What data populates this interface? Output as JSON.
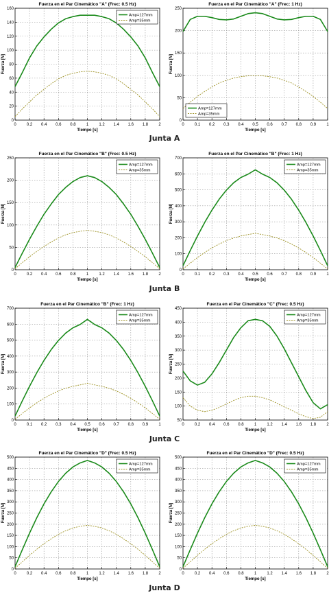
{
  "captions": [
    "Junta A",
    "Junta B",
    "Junta C",
    "Junta D"
  ],
  "colors": {
    "series_127": "#1a8a1a",
    "series_35": "#9b8f1f",
    "grid": "#9a9a9a"
  },
  "chart_data": [
    {
      "type": "line",
      "title": "Fuerza en el Par Cinemático \"A\" (Frec: 0.5 Hz)",
      "xlabel": "Tiempo [s]",
      "ylabel": "Fuerza [N]",
      "xlim": [
        0,
        2
      ],
      "ylim": [
        0,
        160
      ],
      "xticks": [
        "0",
        "0.2",
        "0.4",
        "0.6",
        "0.8",
        "1",
        "1.2",
        "1.4",
        "1.6",
        "1.8",
        "2"
      ],
      "yticks": [
        "0",
        "20",
        "40",
        "60",
        "80",
        "100",
        "120",
        "140",
        "160"
      ],
      "grid": true,
      "legend": "top-right",
      "x": [
        0,
        0.1,
        0.2,
        0.3,
        0.4,
        0.5,
        0.6,
        0.7,
        0.8,
        0.9,
        1.0,
        1.1,
        1.2,
        1.3,
        1.4,
        1.5,
        1.6,
        1.7,
        1.8,
        1.9,
        2.0
      ],
      "series": [
        {
          "name": "Amp=127mm",
          "values": [
            48,
            68,
            89,
            106,
            119,
            130,
            139,
            145,
            148,
            150,
            150,
            150,
            148,
            145,
            139,
            130,
            119,
            106,
            89,
            68,
            48
          ]
        },
        {
          "name": "Amp=35mm",
          "values": [
            5,
            16,
            26,
            36,
            44,
            52,
            59,
            64,
            67,
            69,
            70,
            69,
            67,
            64,
            59,
            52,
            44,
            36,
            26,
            16,
            5
          ]
        }
      ]
    },
    {
      "type": "line",
      "title": "Fuerza en el Par Cinemático \"A\" (Frec: 1 Hz)",
      "xlabel": "Tiempo [s]",
      "ylabel": "Fuerza [N]",
      "xlim": [
        0,
        1
      ],
      "ylim": [
        0,
        250
      ],
      "xticks": [
        "0",
        "0.1",
        "0.2",
        "0.3",
        "0.4",
        "0.5",
        "0.6",
        "0.7",
        "0.8",
        "0.9",
        "1"
      ],
      "yticks": [
        "0",
        "50",
        "100",
        "150",
        "200",
        "250"
      ],
      "grid": true,
      "legend": "bottom-left",
      "x": [
        0,
        0.05,
        0.1,
        0.15,
        0.2,
        0.25,
        0.3,
        0.35,
        0.4,
        0.45,
        0.5,
        0.55,
        0.6,
        0.65,
        0.7,
        0.75,
        0.8,
        0.85,
        0.9,
        0.95,
        1.0
      ],
      "series": [
        {
          "name": "Amp=127mm",
          "values": [
            198,
            225,
            232,
            232,
            229,
            225,
            224,
            226,
            232,
            238,
            240,
            238,
            232,
            226,
            224,
            225,
            229,
            232,
            232,
            225,
            198
          ]
        },
        {
          "name": "Amp=35mm",
          "values": [
            26,
            40,
            53,
            64,
            74,
            83,
            89,
            94,
            97,
            99,
            99,
            99,
            97,
            94,
            89,
            83,
            74,
            64,
            53,
            40,
            26
          ]
        }
      ]
    },
    {
      "type": "line",
      "title": "Fuerza en el Par Cinemático \"B\" (Frec: 0.5 Hz)",
      "xlabel": "Tiempo [s]",
      "ylabel": "Fuerza [N]",
      "xlim": [
        0,
        2
      ],
      "ylim": [
        0,
        250
      ],
      "xticks": [
        "0",
        "0.2",
        "0.4",
        "0.6",
        "0.8",
        "1",
        "1.2",
        "1.4",
        "1.6",
        "1.8",
        "2"
      ],
      "yticks": [
        "0",
        "50",
        "100",
        "150",
        "200",
        "250"
      ],
      "grid": true,
      "legend": "top-right",
      "x": [
        0,
        0.1,
        0.2,
        0.3,
        0.4,
        0.5,
        0.6,
        0.7,
        0.8,
        0.9,
        1.0,
        1.1,
        1.2,
        1.3,
        1.4,
        1.5,
        1.6,
        1.7,
        1.8,
        1.9,
        2.0
      ],
      "series": [
        {
          "name": "Amp=127mm",
          "values": [
            5,
            37,
            68,
            97,
            124,
            147,
            168,
            184,
            197,
            206,
            210,
            206,
            197,
            184,
            168,
            147,
            124,
            97,
            68,
            37,
            5
          ]
        },
        {
          "name": "Amp=35mm",
          "values": [
            2,
            16,
            29,
            41,
            52,
            62,
            71,
            78,
            83,
            86,
            88,
            86,
            83,
            78,
            71,
            62,
            52,
            41,
            29,
            16,
            2
          ]
        }
      ]
    },
    {
      "type": "line",
      "title": "Fuerza en el Par Cinemático \"B\" (Frec: 1 Hz)",
      "xlabel": "Tiempo [s]",
      "ylabel": "Fuerza [N]",
      "xlim": [
        0,
        1
      ],
      "ylim": [
        0,
        700
      ],
      "xticks": [
        "0",
        "0.1",
        "0.2",
        "0.3",
        "0.4",
        "0.5",
        "0.6",
        "0.7",
        "0.8",
        "0.9",
        "1"
      ],
      "yticks": [
        "0",
        "100",
        "200",
        "300",
        "400",
        "500",
        "600",
        "700"
      ],
      "grid": true,
      "legend": "top-right",
      "x": [
        0,
        0.05,
        0.1,
        0.15,
        0.2,
        0.25,
        0.3,
        0.35,
        0.4,
        0.45,
        0.5,
        0.55,
        0.6,
        0.65,
        0.7,
        0.75,
        0.8,
        0.85,
        0.9,
        0.95,
        1.0
      ],
      "series": [
        {
          "name": "Amp=127mm",
          "values": [
            25,
            120,
            211,
            296,
            373,
            441,
            498,
            544,
            577,
            598,
            625,
            598,
            577,
            544,
            498,
            441,
            373,
            296,
            211,
            120,
            25
          ]
        },
        {
          "name": "Amp=35mm",
          "values": [
            5,
            41,
            76,
            108,
            136,
            161,
            182,
            199,
            211,
            220,
            228,
            220,
            211,
            199,
            182,
            161,
            136,
            108,
            76,
            41,
            5
          ]
        }
      ]
    },
    {
      "type": "line",
      "title": "Fuerza en el Par Cinemático \"B\" (Frec: 1 Hz)",
      "xlabel": "Tiempo [s]",
      "ylabel": "Fuerza [N]",
      "xlim": [
        0,
        1
      ],
      "ylim": [
        0,
        700
      ],
      "xticks": [
        "0",
        "0.1",
        "0.2",
        "0.3",
        "0.4",
        "0.5",
        "0.6",
        "0.7",
        "0.8",
        "0.9",
        "1"
      ],
      "yticks": [
        "0",
        "100",
        "200",
        "300",
        "400",
        "500",
        "600",
        "700"
      ],
      "grid": true,
      "legend": "top-right",
      "x": [
        0,
        0.05,
        0.1,
        0.15,
        0.2,
        0.25,
        0.3,
        0.35,
        0.4,
        0.45,
        0.5,
        0.55,
        0.6,
        0.65,
        0.7,
        0.75,
        0.8,
        0.85,
        0.9,
        0.95,
        1.0
      ],
      "series": [
        {
          "name": "Amp=127mm",
          "values": [
            25,
            120,
            211,
            296,
            373,
            441,
            498,
            544,
            577,
            598,
            630,
            598,
            577,
            544,
            498,
            441,
            373,
            296,
            211,
            120,
            25
          ]
        },
        {
          "name": "Amp=35mm",
          "values": [
            5,
            41,
            76,
            108,
            136,
            161,
            182,
            199,
            211,
            220,
            230,
            220,
            211,
            199,
            182,
            161,
            136,
            108,
            76,
            41,
            5
          ]
        }
      ]
    },
    {
      "type": "line",
      "title": "Fuerza en el Par Cinemático \"C\" (Frec: 0.5 Hz)",
      "xlabel": "Tiempo [s]",
      "ylabel": "Fuerza [N]",
      "xlim": [
        0,
        2
      ],
      "ylim": [
        50,
        450
      ],
      "xticks": [
        "0",
        "0.2",
        "0.4",
        "0.6",
        "0.8",
        "1",
        "1.2",
        "1.4",
        "1.6",
        "1.8",
        "2"
      ],
      "yticks": [
        "50",
        "100",
        "150",
        "200",
        "250",
        "300",
        "350",
        "400",
        "450"
      ],
      "grid": true,
      "legend": "top-right",
      "x": [
        0,
        0.1,
        0.2,
        0.3,
        0.4,
        0.5,
        0.6,
        0.7,
        0.8,
        0.9,
        1.0,
        1.1,
        1.2,
        1.3,
        1.4,
        1.5,
        1.6,
        1.7,
        1.8,
        1.9,
        2.0
      ],
      "series": [
        {
          "name": "Amp=127mm",
          "values": [
            225,
            190,
            175,
            185,
            215,
            255,
            300,
            345,
            380,
            405,
            410,
            405,
            385,
            350,
            305,
            255,
            205,
            155,
            112,
            90,
            105
          ]
        },
        {
          "name": "Amp=35mm",
          "values": [
            130,
            100,
            85,
            80,
            85,
            95,
            108,
            120,
            130,
            135,
            135,
            130,
            122,
            110,
            97,
            85,
            72,
            62,
            55,
            60,
            80
          ]
        }
      ]
    },
    {
      "type": "line",
      "title": "Fuerza en el Par Cinemático \"D\" (Frec: 0.5 Hz)",
      "xlabel": "Tiempo [s]",
      "ylabel": "Fuerza [N]",
      "xlim": [
        0,
        2
      ],
      "ylim": [
        0,
        500
      ],
      "xticks": [
        "0",
        "0.2",
        "0.4",
        "0.6",
        "0.8",
        "1",
        "1.2",
        "1.4",
        "1.6",
        "1.8",
        "2"
      ],
      "yticks": [
        "0",
        "50",
        "100",
        "150",
        "200",
        "250",
        "300",
        "350",
        "400",
        "450",
        "500"
      ],
      "grid": true,
      "legend": "top-right",
      "x": [
        0,
        0.1,
        0.2,
        0.3,
        0.4,
        0.5,
        0.6,
        0.7,
        0.8,
        0.9,
        1.0,
        1.1,
        1.2,
        1.3,
        1.4,
        1.5,
        1.6,
        1.7,
        1.8,
        1.9,
        2.0
      ],
      "series": [
        {
          "name": "Amp=127mm",
          "values": [
            10,
            86,
            160,
            229,
            291,
            345,
            391,
            428,
            456,
            474,
            485,
            474,
            456,
            428,
            391,
            345,
            291,
            229,
            160,
            86,
            10
          ]
        },
        {
          "name": "Amp=35mm",
          "values": [
            3,
            32,
            61,
            88,
            113,
            135,
            155,
            171,
            183,
            191,
            195,
            191,
            183,
            171,
            155,
            135,
            113,
            88,
            61,
            32,
            3
          ]
        }
      ]
    },
    {
      "type": "line",
      "title": "Fuerza en el Par Cinemático \"D\" (Frec: 0.5 Hz)",
      "xlabel": "Tiempo [s]",
      "ylabel": "Fuerza [N]",
      "xlim": [
        0,
        2
      ],
      "ylim": [
        0,
        500
      ],
      "xticks": [
        "0",
        "0.2",
        "0.4",
        "0.6",
        "0.8",
        "1",
        "1.2",
        "1.4",
        "1.6",
        "1.8",
        "2"
      ],
      "yticks": [
        "0",
        "50",
        "100",
        "150",
        "200",
        "250",
        "300",
        "350",
        "400",
        "450",
        "500"
      ],
      "grid": true,
      "legend": "top-right",
      "x": [
        0,
        0.1,
        0.2,
        0.3,
        0.4,
        0.5,
        0.6,
        0.7,
        0.8,
        0.9,
        1.0,
        1.1,
        1.2,
        1.3,
        1.4,
        1.5,
        1.6,
        1.7,
        1.8,
        1.9,
        2.0
      ],
      "series": [
        {
          "name": "Amp=127mm",
          "values": [
            10,
            86,
            160,
            229,
            291,
            345,
            391,
            428,
            456,
            474,
            485,
            474,
            456,
            428,
            391,
            345,
            291,
            229,
            160,
            86,
            10
          ]
        },
        {
          "name": "Amp=35mm",
          "values": [
            3,
            32,
            61,
            88,
            113,
            135,
            155,
            171,
            183,
            191,
            195,
            191,
            183,
            171,
            155,
            135,
            113,
            88,
            61,
            32,
            3
          ]
        }
      ]
    }
  ]
}
